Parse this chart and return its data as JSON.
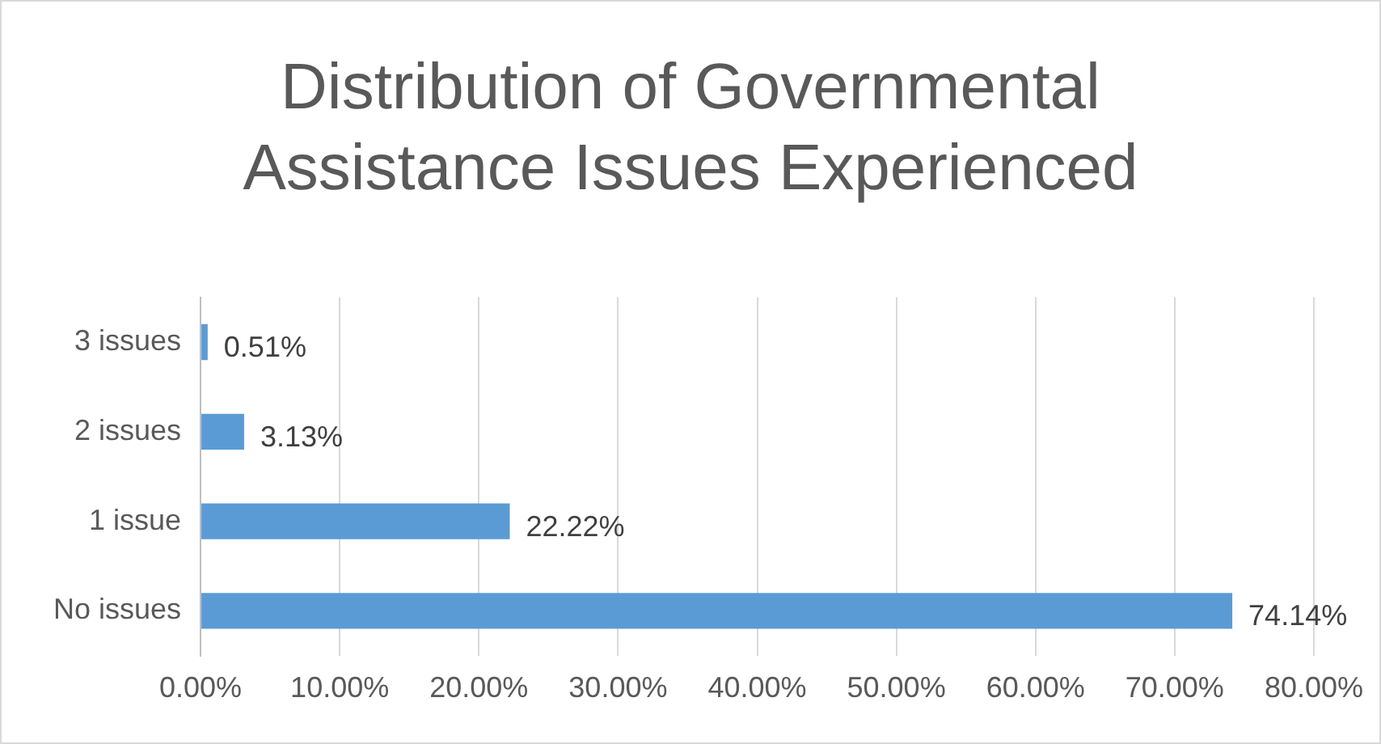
{
  "chart_data": {
    "type": "bar",
    "orientation": "horizontal",
    "title": "Distribution of Governmental Assistance Issues Experienced",
    "categories": [
      "3 issues",
      "2 issues",
      "1 issue",
      "No issues"
    ],
    "values": [
      0.51,
      3.13,
      22.22,
      74.14
    ],
    "value_labels": [
      "0.51%",
      "3.13%",
      "22.22%",
      "74.14%"
    ],
    "color": "#5b9bd5",
    "xlim": [
      0,
      80
    ],
    "xticks": [
      {
        "value": 0,
        "label": "0.00%"
      },
      {
        "value": 10,
        "label": "10.00%"
      },
      {
        "value": 20,
        "label": "20.00%"
      },
      {
        "value": 30,
        "label": "30.00%"
      },
      {
        "value": 40,
        "label": "40.00%"
      },
      {
        "value": 50,
        "label": "50.00%"
      },
      {
        "value": 60,
        "label": "60.00%"
      },
      {
        "value": 70,
        "label": "70.00%"
      },
      {
        "value": 80,
        "label": "80.00%"
      }
    ],
    "grid": "x",
    "legend": false
  }
}
